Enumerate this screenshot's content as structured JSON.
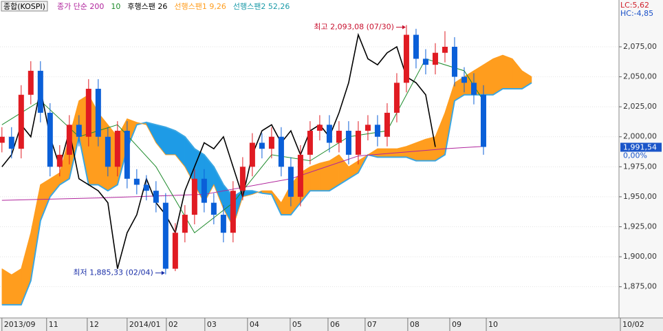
{
  "chart_data": {
    "type": "candlestick",
    "title": "종합(KOSPI)",
    "lc_label": "LC:5,62",
    "hc_label": "HC:-4,85",
    "xlim": [
      -0.2,
      64.07
    ],
    "ylim": [
      1849,
      2114
    ],
    "yticks": [
      {
        "value": 1875,
        "label": "1,875,00"
      },
      {
        "value": 1900,
        "label": "1,900,00"
      },
      {
        "value": 1925,
        "label": "1,925,00"
      },
      {
        "value": 1950,
        "label": "1,950,00"
      },
      {
        "value": 1975,
        "label": "1,975,00"
      },
      {
        "value": 2000,
        "label": "2,000,00"
      },
      {
        "value": 2025,
        "label": "2,025,00"
      },
      {
        "value": 2050,
        "label": "2,050,00"
      },
      {
        "value": 2075,
        "label": "2,075,00"
      }
    ],
    "xticks": [
      {
        "value": 0,
        "label": "2013/09"
      },
      {
        "value": 4.64,
        "label": "11"
      },
      {
        "value": 8.86,
        "label": "12"
      },
      {
        "value": 13,
        "label": "2014/01"
      },
      {
        "value": 17.07,
        "label": "02"
      },
      {
        "value": 21.07,
        "label": "03"
      },
      {
        "value": 25.5,
        "label": "04"
      },
      {
        "value": 29.93,
        "label": "05"
      },
      {
        "value": 33.86,
        "label": "06"
      },
      {
        "value": 37.71,
        "label": "07"
      },
      {
        "value": 42.14,
        "label": "08"
      },
      {
        "value": 46.5,
        "label": "09"
      },
      {
        "value": 50.29,
        "label": "10"
      }
    ],
    "end_date_label": "10/02",
    "grid": true,
    "up_color": "#e01b22",
    "down_color": "#0a5fd8",
    "candles": {
      "x": [
        0,
        1,
        2,
        3,
        4,
        5,
        6,
        7,
        8,
        9,
        10,
        11,
        12,
        13,
        14,
        15,
        16,
        17,
        18,
        19,
        20,
        21,
        22,
        23,
        24,
        25,
        26,
        27,
        28,
        29,
        30,
        31,
        32,
        33,
        34,
        35,
        36,
        37,
        38,
        39,
        40,
        41,
        42,
        43,
        44,
        45,
        46,
        47,
        48,
        49,
        50
      ],
      "open": [
        1995,
        2000,
        1990,
        2035,
        2055,
        2020,
        1975,
        1985,
        2010,
        2000,
        2040,
        2000,
        1975,
        2005,
        1965,
        1960,
        1955,
        1945,
        1890,
        1920,
        1935,
        1965,
        1945,
        1935,
        1920,
        1955,
        1975,
        1995,
        1990,
        2000,
        1975,
        1950,
        1985,
        2005,
        2010,
        1995,
        2005,
        1985,
        2005,
        2010,
        2000,
        2020,
        2045,
        2085,
        2065,
        2060,
        2070,
        2075,
        2050,
        2045,
        2035
      ],
      "high": [
        2008,
        2008,
        2043,
        2063,
        2063,
        2028,
        1993,
        2018,
        2018,
        2048,
        2048,
        2008,
        2013,
        2013,
        1973,
        1968,
        1963,
        1953,
        1928,
        1943,
        1973,
        1973,
        1953,
        1943,
        1963,
        1983,
        2003,
        2003,
        2008,
        2008,
        1983,
        1993,
        2013,
        2018,
        2018,
        2013,
        2013,
        2013,
        2018,
        2018,
        2028,
        2053,
        2093.08,
        2090,
        2073,
        2078,
        2088,
        2083,
        2058,
        2053,
        2043
      ],
      "low": [
        1987,
        1982,
        1982,
        2027,
        2012,
        1967,
        1967,
        1977,
        1992,
        1992,
        1992,
        1967,
        1967,
        1957,
        1952,
        1947,
        1937,
        1885.33,
        1888,
        1912,
        1927,
        1937,
        1927,
        1912,
        1912,
        1947,
        1967,
        1982,
        1982,
        1967,
        1942,
        1942,
        1977,
        1997,
        1987,
        1987,
        1977,
        1977,
        1997,
        1992,
        1992,
        2012,
        2037,
        2057,
        2052,
        2052,
        2062,
        2042,
        2037,
        2027,
        1985
      ],
      "close": [
        2000,
        1990,
        2035,
        2055,
        2020,
        1975,
        1985,
        2010,
        2000,
        2040,
        2000,
        1975,
        2005,
        1965,
        1960,
        1955,
        1945,
        1890,
        1920,
        1935,
        1965,
        1945,
        1935,
        1920,
        1955,
        1975,
        1995,
        1990,
        2000,
        1975,
        1950,
        1985,
        2005,
        2010,
        1995,
        2005,
        1985,
        2005,
        2010,
        2000,
        2020,
        2045,
        2085,
        2065,
        2060,
        2070,
        2075,
        2050,
        2045,
        2035,
        1991.54
      ]
    },
    "cloud": {
      "x": [
        0,
        1,
        2,
        3,
        4,
        5,
        6,
        7,
        8,
        9,
        10,
        11,
        12,
        13,
        14,
        15,
        16,
        17,
        18,
        19,
        20,
        21,
        22,
        23,
        24,
        25,
        26,
        27,
        28,
        29,
        30,
        31,
        32,
        33,
        34,
        35,
        36,
        37,
        38,
        39,
        40,
        41,
        42,
        43,
        44,
        45,
        46,
        47,
        48,
        49,
        50,
        51,
        52,
        53,
        54,
        55
      ],
      "span1": {
        "name": "선행스팬1 9,26",
        "color": "#ff9d1e",
        "values": [
          1890,
          1885,
          1890,
          1920,
          1960,
          1965,
          1970,
          2000,
          2030,
          2035,
          2020,
          2010,
          2000,
          2015,
          2012,
          2010,
          1995,
          1985,
          1985,
          1975,
          1960,
          1945,
          1960,
          1940,
          1925,
          1950,
          1952,
          1955,
          1955,
          1945,
          1960,
          1970,
          1975,
          1978,
          1980,
          1985,
          1975,
          1980,
          1985,
          1990,
          1990,
          1990,
          1992,
          1995,
          1998,
          2000,
          2020,
          2045,
          2050,
          2055,
          2060,
          2065,
          2068,
          2065,
          2055,
          2050
        ]
      },
      "span2": {
        "name": "선행스팬2 52,26",
        "color": "#1e9be6",
        "values": [
          1860,
          1860,
          1860,
          1880,
          1930,
          1950,
          1960,
          1965,
          2000,
          1960,
          1960,
          1955,
          1960,
          1990,
          2010,
          2012,
          2010,
          2008,
          2005,
          2000,
          1990,
          1985,
          1975,
          1960,
          1950,
          1955,
          1955,
          1953,
          1952,
          1935,
          1935,
          1945,
          1955,
          1955,
          1955,
          1960,
          1965,
          1970,
          1985,
          1983,
          1983,
          1983,
          1983,
          1980,
          1980,
          1980,
          1985,
          2030,
          2035,
          2035,
          2035,
          2035,
          2040,
          2040,
          2040,
          2045
        ]
      }
    },
    "series": [
      {
        "name": "종가 단순 200",
        "color": "#b0249c",
        "x": [
          0,
          10,
          21,
          30,
          37,
          46,
          50
        ],
        "values": [
          1947,
          1949,
          1952,
          1965,
          1984,
          1990,
          1992
        ]
      },
      {
        "name": "10",
        "color": "#1c8a2a",
        "x": [
          0,
          4,
          8,
          12,
          16,
          20,
          24,
          28,
          32,
          36,
          40,
          44,
          48,
          50
        ],
        "values": [
          2010,
          2030,
          2000,
          2010,
          1975,
          1920,
          1945,
          1985,
          1980,
          2000,
          2005,
          2065,
          2055,
          2030
        ]
      },
      {
        "name": "후행스팬 26",
        "color": "#000000",
        "x": [
          0,
          1,
          2,
          3,
          4,
          5,
          6,
          7,
          8,
          9,
          10,
          11,
          12,
          13,
          14,
          15,
          16,
          17,
          18,
          19,
          20,
          21,
          22,
          23,
          24,
          25,
          26,
          27,
          28,
          29,
          30,
          31,
          32,
          33,
          34,
          35,
          36,
          37,
          38,
          39,
          40,
          41,
          42,
          43,
          44,
          45
        ],
        "values": [
          1975,
          1985,
          2010,
          2000,
          2040,
          2000,
          1975,
          2005,
          1965,
          1960,
          1955,
          1945,
          1890,
          1920,
          1935,
          1965,
          1945,
          1935,
          1920,
          1955,
          1975,
          1995,
          1990,
          2000,
          1975,
          1950,
          1985,
          2005,
          2010,
          1995,
          2005,
          1985,
          2005,
          2010,
          2000,
          2020,
          2045,
          2085,
          2065,
          2060,
          2070,
          2075,
          2050,
          2045,
          2035,
          1991.54
        ]
      }
    ],
    "high_note": {
      "text": "최고 2,093,08 (07/30)",
      "value": 2093.08,
      "x": 42,
      "color": "#c8102e"
    },
    "low_note": {
      "text": "최저 1,885,33 (02/04)",
      "value": 1885.33,
      "x": 17,
      "color": "#1a2fa8"
    },
    "current_price": {
      "value": 1991.54,
      "label": "1,991,54"
    },
    "change_label": "0,00%"
  }
}
